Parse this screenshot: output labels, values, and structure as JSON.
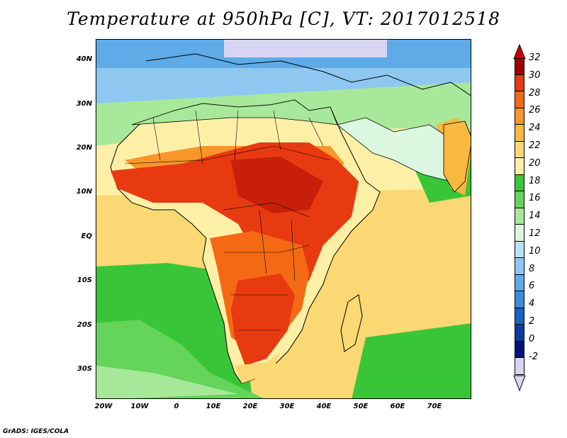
{
  "title": "Temperature at 950hPa [C], VT: 2017012518",
  "credit": "GrADS: IGES/COLA",
  "lat_labels": [
    "40N",
    "30N",
    "20N",
    "10N",
    "EQ",
    "10S",
    "20S",
    "30S"
  ],
  "lon_labels": [
    "20W",
    "10W",
    "0",
    "10E",
    "20E",
    "30E",
    "40E",
    "50E",
    "60E",
    "70E"
  ],
  "colorbar": {
    "levels": [
      "32",
      "30",
      "28",
      "26",
      "24",
      "22",
      "20",
      "18",
      "16",
      "14",
      "12",
      "10",
      "8",
      "6",
      "4",
      "2",
      "0",
      "-2"
    ],
    "colors": [
      "#a00000",
      "#e83a10",
      "#f46a14",
      "#f8962a",
      "#f9b840",
      "#fbd873",
      "#fdf0a6",
      "#38c638",
      "#64d45a",
      "#a8e89a",
      "#dcf7e0",
      "#b6e2f6",
      "#8ec8f0",
      "#5eabe8",
      "#3a8be0",
      "#1a62c8",
      "#0a3ca8",
      "#06137c",
      "#d8d4f4"
    ],
    "top_arrow_color": "#c80000",
    "bottom_arrow_color": "#d8d4f4"
  },
  "colors": {
    "ocean_warm": "#fbd873",
    "ocean_cool": "#64d45a",
    "ocean_cold": "#b6e2f6",
    "land_hot": "#e83a10",
    "land_very_hot": "#c81f0a",
    "land_warm": "#f8962a"
  }
}
